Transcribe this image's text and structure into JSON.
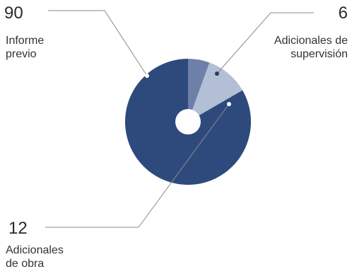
{
  "chart_data": {
    "type": "pie",
    "title": "",
    "categories": [
      "Informe previo",
      "Adicionales de supervisión",
      "Adicionales de obra"
    ],
    "values": [
      90,
      6,
      12
    ],
    "colors": [
      "#2e4a7d",
      "#6c80a8",
      "#b3bfd6"
    ],
    "center_hole_color": "#ffffff",
    "slices": [
      {
        "value": 90,
        "value_label": "90",
        "label_lines": [
          "Informe",
          "previo"
        ],
        "color": "#2e4a7d",
        "marker_color": "#ffffff"
      },
      {
        "value": 6,
        "value_label": "6",
        "label_lines": [
          "Adicionales de",
          "supervisión"
        ],
        "color": "#6c80a8",
        "marker_color": "#2a3a5e"
      },
      {
        "value": 12,
        "value_label": "12",
        "label_lines": [
          "Adicionales",
          "de obra"
        ],
        "color": "#b3bfd6",
        "marker_color": "#ffffff"
      }
    ]
  }
}
